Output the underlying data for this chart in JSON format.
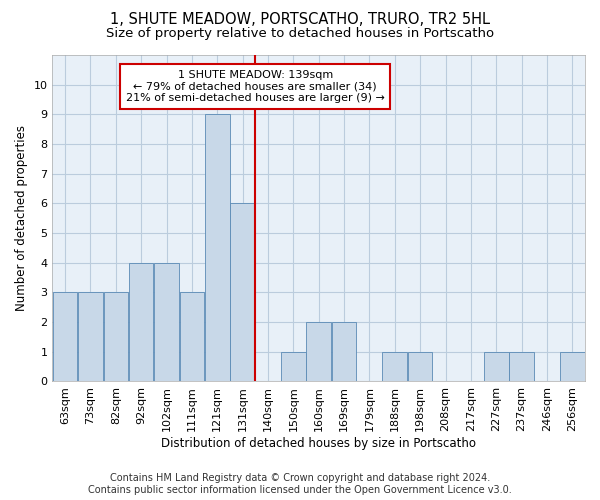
{
  "title": "1, SHUTE MEADOW, PORTSCATHO, TRURO, TR2 5HL",
  "subtitle": "Size of property relative to detached houses in Portscatho",
  "xlabel": "Distribution of detached houses by size in Portscatho",
  "ylabel": "Number of detached properties",
  "bin_labels": [
    "63sqm",
    "73sqm",
    "82sqm",
    "92sqm",
    "102sqm",
    "111sqm",
    "121sqm",
    "131sqm",
    "140sqm",
    "150sqm",
    "160sqm",
    "169sqm",
    "179sqm",
    "188sqm",
    "198sqm",
    "208sqm",
    "217sqm",
    "227sqm",
    "237sqm",
    "246sqm",
    "256sqm"
  ],
  "values": [
    3,
    3,
    3,
    4,
    4,
    3,
    9,
    6,
    0,
    1,
    2,
    2,
    0,
    1,
    1,
    0,
    0,
    1,
    1,
    0,
    1
  ],
  "bar_color": "#c8d8e8",
  "bar_edge_color": "#5a8ab5",
  "property_line_x": 7.5,
  "property_label": "1 SHUTE MEADOW: 139sqm",
  "annotation_line1": "← 79% of detached houses are smaller (34)",
  "annotation_line2": "21% of semi-detached houses are larger (9) →",
  "annotation_box_color": "#ffffff",
  "annotation_box_edge_color": "#cc0000",
  "vline_color": "#cc0000",
  "ylim": [
    0,
    11
  ],
  "yticks": [
    0,
    1,
    2,
    3,
    4,
    5,
    6,
    7,
    8,
    9,
    10,
    11
  ],
  "grid_color": "#bbccdd",
  "bg_color": "#e8f0f8",
  "footnote1": "Contains HM Land Registry data © Crown copyright and database right 2024.",
  "footnote2": "Contains public sector information licensed under the Open Government Licence v3.0.",
  "title_fontsize": 10.5,
  "subtitle_fontsize": 9.5,
  "xlabel_fontsize": 8.5,
  "ylabel_fontsize": 8.5,
  "tick_fontsize": 8,
  "annotation_fontsize": 8,
  "footnote_fontsize": 7
}
